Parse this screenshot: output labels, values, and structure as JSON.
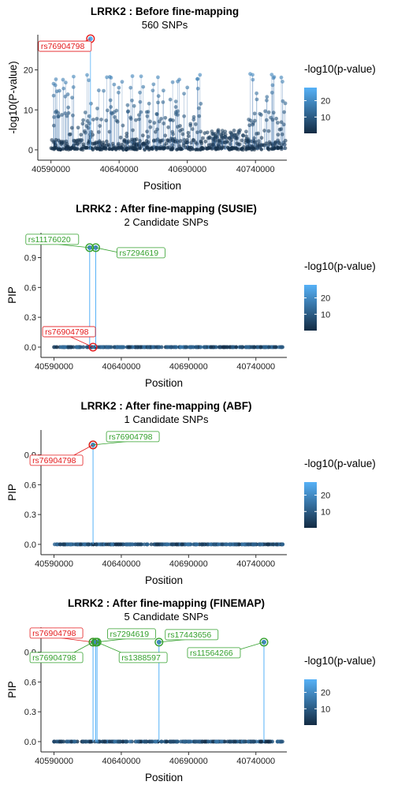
{
  "legend": {
    "title": "-log10(p-value)",
    "ticks": [
      20,
      10
    ],
    "range": [
      0,
      28
    ],
    "color_low": "#132B43",
    "color_high": "#56B1F7"
  },
  "colors": {
    "lead_snp": "#e41a1c",
    "candidate_snp": "#33a02c"
  },
  "chart_data": [
    {
      "type": "scatter",
      "title": "LRRK2 : Before fine-mapping",
      "subtitle": "560 SNPs",
      "xlabel": "Position",
      "ylabel": "-log10(P-value)",
      "xlim": [
        40585000,
        40763000
      ],
      "ylim": [
        -1,
        28.8
      ],
      "x_ticks": [
        40590000,
        40640000,
        40690000,
        40740000
      ],
      "y_ticks": [
        0,
        10,
        20
      ],
      "y_tick_labels": [
        "0",
        "10",
        "20"
      ],
      "n_snps": 560,
      "stems": true,
      "labels": [
        {
          "text": "rs76904798",
          "x": 40619000,
          "y": 27.8,
          "color": "red"
        }
      ]
    },
    {
      "type": "scatter",
      "title": "LRRK2 : After fine-mapping (SUSIE)",
      "subtitle": "2 Candidate SNPs",
      "xlabel": "Position",
      "ylabel": "PIP",
      "xlim": [
        40585000,
        40763000
      ],
      "ylim": [
        -0.04,
        1.15
      ],
      "x_ticks": [
        40590000,
        40640000,
        40690000,
        40740000
      ],
      "y_ticks": [
        0,
        0.3,
        0.6,
        0.9
      ],
      "y_tick_labels": [
        "0.0",
        "0.3",
        "0.6",
        "0.9"
      ],
      "labels": [
        {
          "text": "rs11176020",
          "x": 40616500,
          "y": 1.0,
          "color": "green"
        },
        {
          "text": "rs7294619",
          "x": 40621000,
          "y": 1.0,
          "color": "green"
        },
        {
          "text": "rs76904798",
          "x": 40619000,
          "y": 0.0,
          "color": "red"
        }
      ]
    },
    {
      "type": "scatter",
      "title": "LRRK2 : After fine-mapping (ABF)",
      "subtitle": "1 Candidate SNPs",
      "xlabel": "Position",
      "ylabel": "PIP",
      "xlim": [
        40585000,
        40763000
      ],
      "ylim": [
        -0.04,
        1.15
      ],
      "x_ticks": [
        40590000,
        40640000,
        40690000,
        40740000
      ],
      "y_ticks": [
        0,
        0.3,
        0.6,
        0.9
      ],
      "y_tick_labels": [
        "0.0",
        "0.3",
        "0.6",
        "0.9"
      ],
      "labels": [
        {
          "text": "rs76904798",
          "x": 40619000,
          "y": 1.0,
          "color": "green"
        },
        {
          "text": "rs76904798",
          "x": 40619000,
          "y": 1.0,
          "color": "red"
        }
      ]
    },
    {
      "type": "scatter",
      "title": "LRRK2 : After fine-mapping (FINEMAP)",
      "subtitle": "5 Candidate SNPs",
      "xlabel": "Position",
      "ylabel": "PIP",
      "xlim": [
        40585000,
        40763000
      ],
      "ylim": [
        -0.04,
        1.15
      ],
      "x_ticks": [
        40590000,
        40640000,
        40690000,
        40740000
      ],
      "y_ticks": [
        0,
        0.3,
        0.6,
        0.9
      ],
      "y_tick_labels": [
        "0.0",
        "0.3",
        "0.6",
        "0.9"
      ],
      "labels": [
        {
          "text": "rs76904798",
          "x": 40619000,
          "y": 1.0,
          "color": "red"
        },
        {
          "text": "rs7294619",
          "x": 40621000,
          "y": 1.0,
          "color": "green"
        },
        {
          "text": "rs17443656",
          "x": 40668000,
          "y": 1.0,
          "color": "green"
        },
        {
          "text": "rs76904798",
          "x": 40619000,
          "y": 1.0,
          "color": "green"
        },
        {
          "text": "rs1388597",
          "x": 40622000,
          "y": 1.0,
          "color": "green"
        },
        {
          "text": "rs11564266",
          "x": 40746000,
          "y": 1.0,
          "color": "green"
        }
      ]
    }
  ]
}
